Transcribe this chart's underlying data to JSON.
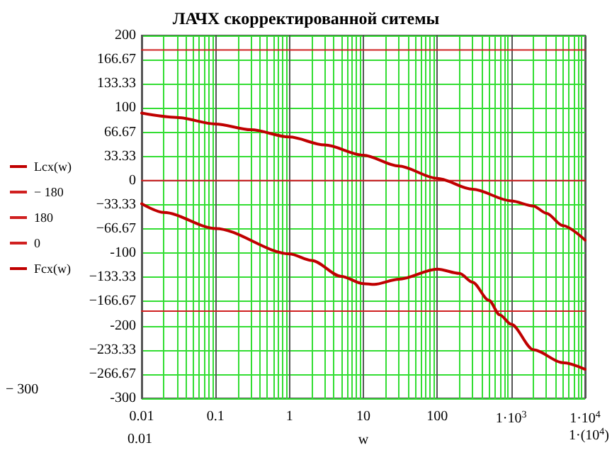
{
  "chart_data": {
    "type": "line",
    "title": "ЛАЧХ скорректированной ситемы",
    "xlabel": "w",
    "annotations": [
      "− 300",
      "0.01",
      "1·(10$^{4}$)"
    ],
    "log": "x",
    "grid": true,
    "legend": "left",
    "marker": "none",
    "line_style": "solid",
    "xlim": [
      0.01,
      10000
    ],
    "xticks": [
      0.01,
      {
        "value": 0.02,
        "label": null
      },
      {
        "value": 0.03,
        "label": null
      },
      {
        "value": 0.04,
        "label": null
      },
      {
        "value": 0.05,
        "label": null
      },
      {
        "value": 0.06,
        "label": null
      },
      {
        "value": 0.07,
        "label": null
      },
      {
        "value": 0.08,
        "label": null
      },
      {
        "value": 0.09,
        "label": null
      },
      0.1,
      {
        "value": 0.2,
        "label": null
      },
      {
        "value": 0.3,
        "label": null
      },
      {
        "value": 0.4,
        "label": null
      },
      {
        "value": 0.5,
        "label": null
      },
      {
        "value": 0.6,
        "label": null
      },
      {
        "value": 0.7,
        "label": null
      },
      {
        "value": 0.8,
        "label": null
      },
      {
        "value": 0.9,
        "label": null
      },
      1,
      {
        "value": 2,
        "label": null
      },
      {
        "value": 3,
        "label": null
      },
      {
        "value": 4,
        "label": null
      },
      {
        "value": 5,
        "label": null
      },
      {
        "value": 6,
        "label": null
      },
      {
        "value": 7,
        "label": null
      },
      {
        "value": 8,
        "label": null
      },
      {
        "value": 9,
        "label": null
      },
      10,
      {
        "value": 20,
        "label": null
      },
      {
        "value": 30,
        "label": null
      },
      {
        "value": 40,
        "label": null
      },
      {
        "value": 50,
        "label": null
      },
      {
        "value": 60,
        "label": null
      },
      {
        "value": 70,
        "label": null
      },
      {
        "value": 80,
        "label": null
      },
      {
        "value": 90,
        "label": null
      },
      100,
      {
        "value": 200,
        "label": null
      },
      {
        "value": 300,
        "label": null
      },
      {
        "value": 400,
        "label": null
      },
      {
        "value": 500,
        "label": null
      },
      {
        "value": 600,
        "label": null
      },
      {
        "value": 700,
        "label": null
      },
      {
        "value": 800,
        "label": null
      },
      {
        "value": 900,
        "label": null
      },
      {
        "value": 1000,
        "label": "1·10$^{3}$"
      },
      {
        "value": 2000,
        "label": null
      },
      {
        "value": 3000,
        "label": null
      },
      {
        "value": 4000,
        "label": null
      },
      {
        "value": 5000,
        "label": null
      },
      {
        "value": 6000,
        "label": null
      },
      {
        "value": 7000,
        "label": null
      },
      {
        "value": 8000,
        "label": null
      },
      {
        "value": 9000,
        "label": null
      },
      {
        "value": 10000,
        "label": "1·10$^{4}$"
      }
    ],
    "ylim": [
      -300,
      200
    ],
    "yticks": [
      -300,
      {
        "value": -266.67,
        "label": "−266.67"
      },
      {
        "value": -233.33,
        "label": "−233.33"
      },
      -200,
      {
        "value": -166.67,
        "label": "−166.67"
      },
      {
        "value": -133.33,
        "label": "−133.33"
      },
      -100,
      {
        "value": -66.67,
        "label": "−66.67"
      },
      {
        "value": -33.33,
        "label": "−33.33"
      },
      0,
      33.33,
      66.67,
      100,
      133.33,
      166.67,
      200
    ],
    "series": [
      {
        "name": "Lcx(w)",
        "color": "#c00000",
        "x": [
          0.01,
          0.03,
          0.1,
          0.3,
          1,
          3,
          10,
          30,
          100,
          300,
          1000,
          2000,
          3000,
          5000,
          10000
        ],
        "values": [
          93,
          87,
          78,
          70,
          60,
          49,
          35,
          20,
          3,
          -12,
          -28,
          -35,
          -45,
          -62,
          -82
        ]
      },
      {
        "name": "− 180",
        "color": "#d02020",
        "x": [
          0.01,
          10000
        ],
        "values": [
          -180,
          -180
        ]
      },
      {
        "name": "180",
        "color": "#d02020",
        "x": [
          0.01,
          10000
        ],
        "values": [
          180,
          180
        ]
      },
      {
        "name": "0",
        "color": "#d02020",
        "x": [
          0.01,
          10000
        ],
        "values": [
          0,
          0
        ]
      },
      {
        "name": "Fcx(w)",
        "color": "#c00000",
        "x": [
          0.01,
          0.02,
          0.1,
          1,
          2,
          5,
          10,
          14,
          30,
          100,
          200,
          300,
          500,
          700,
          1000,
          2000,
          5000,
          10000
        ],
        "values": [
          -32,
          -44,
          -66,
          -101,
          -110,
          -132,
          -142,
          -143,
          -136,
          -122,
          -128,
          -140,
          -165,
          -185,
          -198,
          -233,
          -251,
          -260
        ]
      }
    ]
  }
}
